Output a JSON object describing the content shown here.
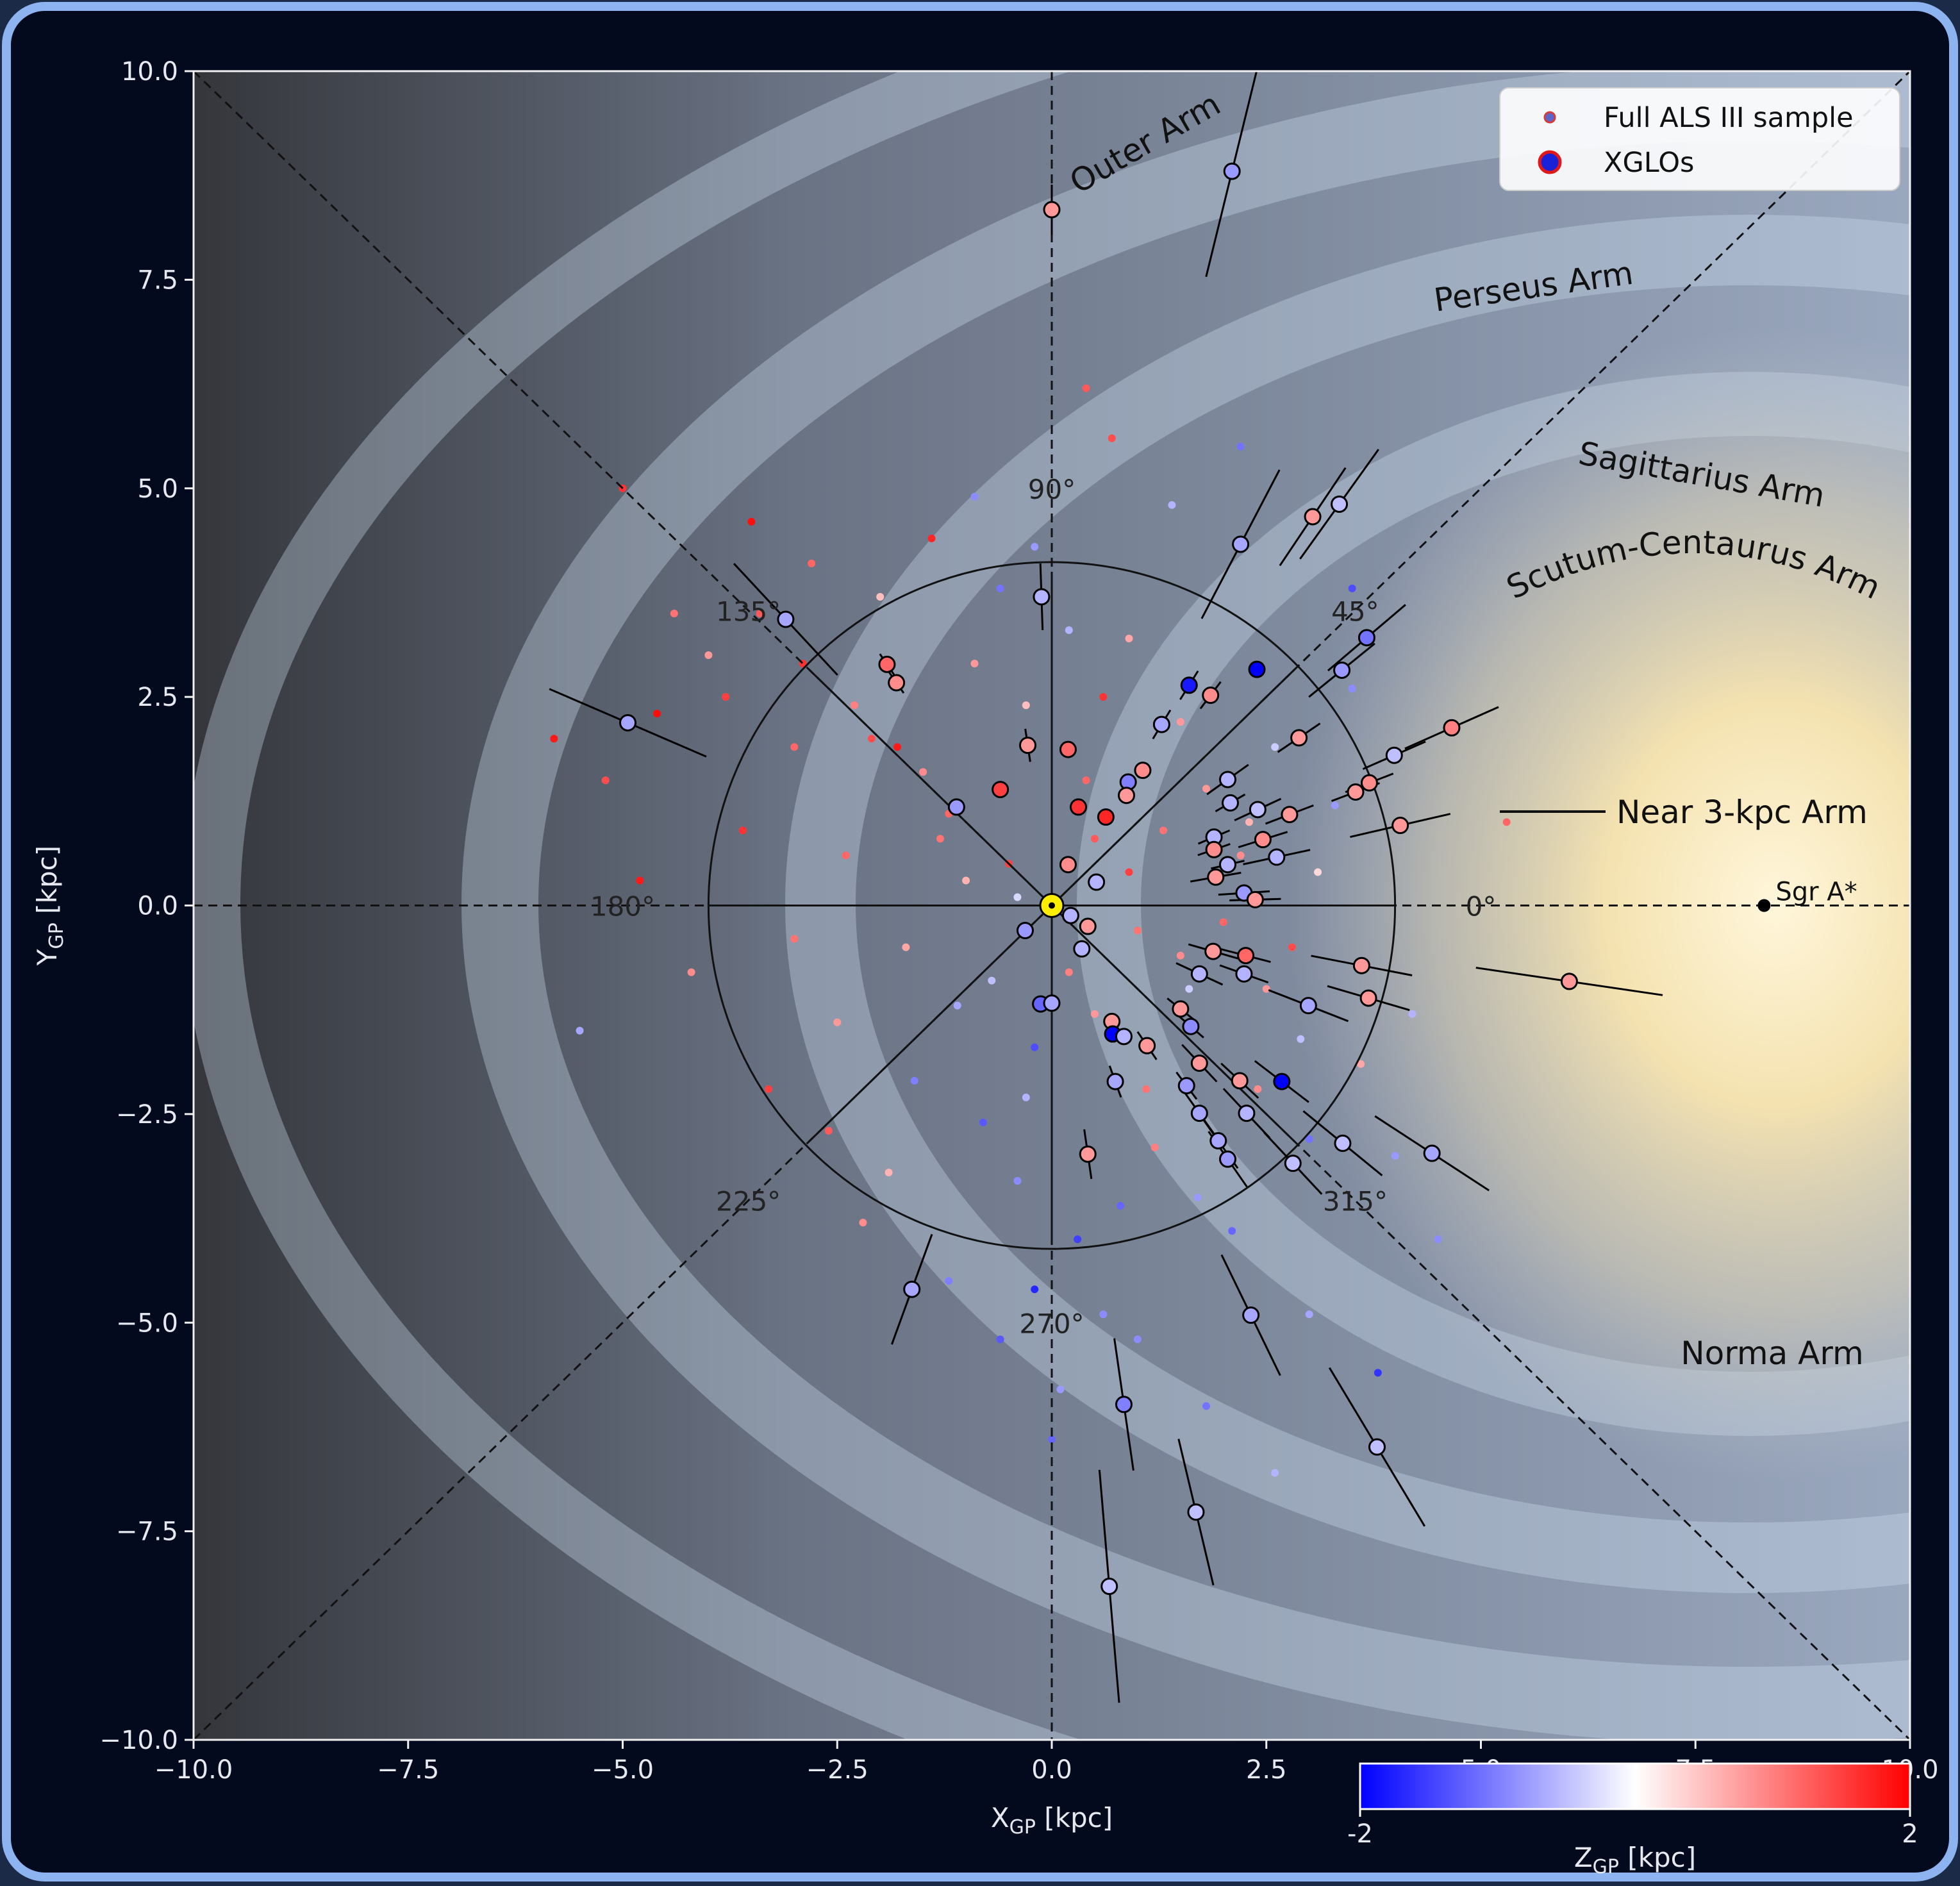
{
  "chart_data": {
    "type": "scatter",
    "xlabel": {
      "main": "X",
      "sub": "GP",
      "unit": " [kpc]"
    },
    "ylabel": {
      "main": "Y",
      "sub": "GP",
      "unit": " [kpc]"
    },
    "xlim": [
      -10,
      10
    ],
    "ylim": [
      -10,
      10
    ],
    "xticks": [
      {
        "value": -10,
        "label": "−10.0"
      },
      {
        "value": -7.5,
        "label": "−7.5"
      },
      {
        "value": -5,
        "label": "−5.0"
      },
      {
        "value": -2.5,
        "label": "−2.5"
      },
      {
        "value": 0,
        "label": "0.0"
      },
      {
        "value": 2.5,
        "label": "2.5"
      },
      {
        "value": 5,
        "label": "5.0"
      },
      {
        "value": 7.5,
        "label": "7.5"
      },
      {
        "value": 10,
        "label": "10.0"
      }
    ],
    "yticks": [
      {
        "value": -10,
        "label": "−10.0"
      },
      {
        "value": -7.5,
        "label": "−7.5"
      },
      {
        "value": -5,
        "label": "−5.0"
      },
      {
        "value": -2.5,
        "label": "−2.5"
      },
      {
        "value": 0,
        "label": "0.0"
      },
      {
        "value": 2.5,
        "label": "2.5"
      },
      {
        "value": 5,
        "label": "5.0"
      },
      {
        "value": 7.5,
        "label": "7.5"
      },
      {
        "value": 10,
        "label": "10.0"
      }
    ],
    "colormap": "bwr",
    "zlim": [
      -2,
      2
    ],
    "zticks": [
      -2,
      2
    ],
    "zlabel": {
      "main": "Z",
      "sub": "GP",
      "unit": " [kpc]"
    },
    "legend_loc": "upper right",
    "series": [
      {
        "name": "Full ALS III sample",
        "legend_marker": {
          "fill": "#5a66c8",
          "edge": "#d83a3a"
        },
        "x": [
          -0.5,
          -1.2,
          -1.8,
          -2.3,
          -2.9,
          -3.4,
          -4.0,
          -4.6,
          -5.2,
          -1.0,
          -1.5,
          -2.1,
          -0.3,
          0.4,
          0.6,
          0.9,
          1.3,
          1.8,
          2.2,
          2.6,
          3.1,
          3.5,
          -0.2,
          -0.6,
          0.2,
          0.5,
          1.0,
          1.5,
          2.0,
          2.5,
          -3.0,
          -3.6,
          -4.2,
          -4.8,
          -5.5,
          -2.5,
          -1.6,
          -0.8,
          -0.4,
          0.3,
          0.8,
          1.2,
          1.7,
          2.4,
          3.0,
          3.6,
          4.2,
          -1.9,
          -2.6,
          -3.3,
          -1.1,
          -0.7,
          -0.2,
          0.5,
          1.1,
          1.6,
          2.1,
          2.8,
          3.3,
          -0.9,
          -1.4,
          -2.0,
          -2.8,
          -3.5,
          -4.4,
          -5.0,
          -5.8,
          -1.2,
          -0.6,
          0.1,
          0.7,
          1.4,
          2.2,
          3.0,
          3.8,
          4.5,
          5.3,
          -1.3,
          -0.9,
          -0.4,
          0.2,
          0.9,
          1.5,
          2.3,
          2.9,
          -0.3,
          0.0,
          0.4,
          -2.2,
          -3.0,
          -3.8,
          1.0,
          1.8,
          2.6,
          3.5,
          4.0,
          -1.7,
          -2.4,
          -0.2,
          0.6
        ],
        "y": [
          0.5,
          1.1,
          1.9,
          2.4,
          2.9,
          3.5,
          3.0,
          2.3,
          1.5,
          0.3,
          1.6,
          2.0,
          2.4,
          1.5,
          2.5,
          3.2,
          0.9,
          1.4,
          0.6,
          1.9,
          0.4,
          2.6,
          4.3,
          3.8,
          3.3,
          0.8,
          -0.3,
          -0.6,
          -0.2,
          -1.0,
          -0.4,
          0.9,
          -0.8,
          0.3,
          -1.5,
          -1.4,
          -2.1,
          -2.6,
          -3.3,
          -4.0,
          -3.6,
          -2.9,
          -3.5,
          -2.2,
          -2.8,
          -1.9,
          -1.3,
          -3.2,
          -2.7,
          -2.2,
          -1.2,
          -0.9,
          -1.7,
          -1.3,
          -2.2,
          -1.0,
          -3.9,
          -0.5,
          1.2,
          4.9,
          4.4,
          3.7,
          4.1,
          4.6,
          3.5,
          5.0,
          2.0,
          -4.5,
          -5.2,
          -5.8,
          5.6,
          4.8,
          5.5,
          -4.9,
          -5.6,
          -4.0,
          1.0,
          0.8,
          2.9,
          0.1,
          -0.8,
          0.4,
          2.2,
          1.0,
          -1.6,
          -2.3,
          -6.4,
          6.2,
          -3.8,
          1.9,
          2.5,
          -5.2,
          -6.0,
          -6.8,
          3.8,
          -3.0,
          -0.5,
          0.6,
          -4.6,
          -4.9
        ],
        "z": [
          1.5,
          1.2,
          1.8,
          1.0,
          1.6,
          1.3,
          0.8,
          1.9,
          1.4,
          0.6,
          0.9,
          1.4,
          0.5,
          1.2,
          1.6,
          0.7,
          1.1,
          0.8,
          0.9,
          -0.4,
          0.3,
          -0.9,
          -0.8,
          -1.1,
          -0.6,
          1.3,
          1.1,
          0.9,
          1.2,
          0.8,
          1.1,
          1.6,
          0.9,
          1.8,
          -0.7,
          0.8,
          -1.0,
          -1.3,
          -0.9,
          -1.5,
          -1.2,
          1.0,
          -0.8,
          0.9,
          -1.1,
          0.7,
          -0.6,
          0.6,
          1.3,
          1.5,
          -0.7,
          -0.5,
          -1.4,
          0.8,
          1.1,
          -0.4,
          -1.2,
          1.4,
          -0.8,
          -0.9,
          1.7,
          0.5,
          1.2,
          1.9,
          1.1,
          1.6,
          1.8,
          -1.0,
          -1.3,
          -0.8,
          1.4,
          -0.6,
          -1.1,
          -0.7,
          -1.6,
          -0.9,
          1.2,
          1.1,
          0.8,
          -0.3,
          1.0,
          1.5,
          0.8,
          0.6,
          -0.5,
          -0.6,
          -1.2,
          1.3,
          0.9,
          1.2,
          1.5,
          -0.9,
          -1.1,
          -0.6,
          -1.4,
          -0.8,
          0.7,
          1.2,
          -1.7,
          -0.9
        ]
      },
      {
        "name": "XGLOs",
        "legend_marker": {
          "fill": "#1a22d8",
          "edge": "#e01818"
        },
        "x": [
          0.0,
          2.1,
          3.04,
          3.35,
          2.2,
          -0.12,
          -3.1,
          -4.94,
          -1.92,
          -1.81,
          -0.28,
          0.19,
          -0.6,
          -1.11,
          0.31,
          0.63,
          1.6,
          2.39,
          1.85,
          1.28,
          1.06,
          0.89,
          0.87,
          2.88,
          3.38,
          3.67,
          3.99,
          4.66,
          3.7,
          3.54,
          4.06,
          2.05,
          2.4,
          2.77,
          2.46,
          2.08,
          1.89,
          2.62,
          2.05,
          1.89,
          1.91,
          2.24,
          2.37,
          0.19,
          0.52,
          0.22,
          -0.31,
          0.42,
          0.35,
          -0.13,
          0.0,
          0.7,
          0.71,
          0.84,
          1.11,
          1.5,
          1.62,
          1.72,
          0.74,
          0.42,
          1.57,
          1.72,
          1.94,
          2.05,
          2.19,
          2.27,
          2.68,
          2.81,
          3.39,
          4.43,
          2.99,
          3.69,
          3.61,
          6.03,
          1.72,
          2.24,
          1.88,
          2.26,
          -1.63,
          2.32,
          0.84,
          3.79,
          1.68,
          0.67
        ],
        "y": [
          8.34,
          8.8,
          4.66,
          4.81,
          4.33,
          3.7,
          3.43,
          2.19,
          2.89,
          2.67,
          1.92,
          1.87,
          1.39,
          1.18,
          1.18,
          1.06,
          2.64,
          2.83,
          2.52,
          2.17,
          1.62,
          1.48,
          1.32,
          2.01,
          2.82,
          3.21,
          1.8,
          2.13,
          1.47,
          1.36,
          0.96,
          1.51,
          1.15,
          1.09,
          0.79,
          1.23,
          0.82,
          0.58,
          0.49,
          0.67,
          0.34,
          0.15,
          0.07,
          0.49,
          0.28,
          -0.12,
          -0.3,
          -0.25,
          -0.52,
          -1.18,
          -1.17,
          -1.39,
          -1.54,
          -1.57,
          -1.68,
          -1.24,
          -1.45,
          -1.89,
          -2.11,
          -2.98,
          -2.16,
          -2.49,
          -2.82,
          -3.04,
          -2.1,
          -2.49,
          -2.11,
          -3.09,
          -2.85,
          -2.97,
          -1.2,
          -1.11,
          -0.72,
          -0.91,
          -0.82,
          -0.82,
          -0.55,
          -0.6,
          -4.6,
          -4.91,
          -5.98,
          -6.49,
          -7.27,
          -8.16
        ],
        "z": [
          0.8,
          -0.8,
          0.8,
          -0.5,
          -0.7,
          -0.6,
          -0.7,
          -0.7,
          1.2,
          0.9,
          0.8,
          1.2,
          1.5,
          -0.8,
          1.6,
          1.7,
          -1.8,
          -2.0,
          0.9,
          -0.7,
          0.9,
          -1.0,
          0.8,
          0.8,
          -0.8,
          -1.1,
          -0.5,
          1.0,
          0.9,
          0.8,
          0.8,
          -0.6,
          -0.5,
          0.8,
          0.9,
          -0.6,
          -0.6,
          -0.6,
          -0.6,
          0.9,
          0.8,
          -0.8,
          0.8,
          0.9,
          -0.6,
          -0.6,
          -0.8,
          0.8,
          -0.6,
          -1.2,
          -0.7,
          0.8,
          -2.0,
          -0.6,
          0.8,
          0.8,
          -0.9,
          0.8,
          -0.7,
          0.8,
          -0.8,
          -0.7,
          -0.7,
          -0.8,
          0.8,
          -0.6,
          -2.0,
          -0.5,
          -0.5,
          -0.7,
          -0.7,
          0.8,
          0.8,
          0.8,
          -0.6,
          -0.6,
          0.8,
          1.2,
          -0.7,
          -0.7,
          -1.0,
          -0.5,
          -0.5,
          -0.5
        ],
        "err": [
          0.3,
          1.3,
          0.7,
          0.8,
          1.0,
          0.4,
          0.9,
          1.0,
          0.15,
          0.15,
          0.2,
          0.1,
          0.1,
          0.1,
          0.1,
          0.1,
          0.2,
          0.1,
          0.2,
          0.2,
          0.1,
          0.1,
          0.1,
          0.3,
          0.5,
          0.6,
          0.4,
          0.6,
          0.3,
          0.3,
          0.6,
          0.3,
          0.3,
          0.3,
          0.3,
          0.2,
          0.2,
          0.4,
          0.2,
          0.2,
          0.3,
          0.3,
          0.3,
          0.1,
          0.1,
          0.1,
          0.1,
          0.1,
          0.1,
          0.1,
          0.1,
          0.1,
          0.1,
          0.1,
          0.2,
          0.2,
          0.2,
          0.3,
          0.2,
          0.3,
          0.2,
          0.3,
          0.4,
          0.4,
          0.3,
          0.4,
          0.4,
          0.5,
          0.6,
          0.8,
          0.5,
          0.5,
          0.6,
          1.1,
          0.3,
          0.3,
          0.3,
          0.3,
          0.7,
          0.8,
          0.8,
          1.1,
          0.9,
          1.4
        ]
      }
    ],
    "sgr_a": {
      "label": "Sgr A*",
      "x": 8.3,
      "y": 0
    },
    "angle_labels": [
      {
        "value": 90,
        "label": "90°"
      },
      {
        "value": 135,
        "label": "135°"
      },
      {
        "value": 45,
        "label": "45°"
      },
      {
        "value": 180,
        "label": "180°"
      },
      {
        "value": 0,
        "label": "0°"
      },
      {
        "value": 225,
        "label": "225°"
      },
      {
        "value": 315,
        "label": "315°"
      },
      {
        "value": 270,
        "label": "270°"
      }
    ],
    "annotations": [
      "Outer Arm",
      "Perseus Arm",
      "Sagittarius Arm",
      "Scutum-Centaurus Arm",
      "Near 3-kpc Arm",
      "Norma Arm"
    ]
  }
}
